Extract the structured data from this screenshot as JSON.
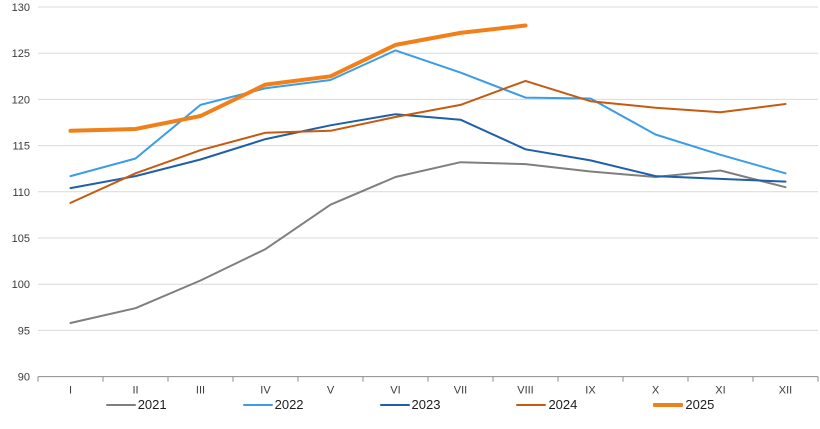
{
  "chart_data": {
    "type": "line",
    "title": "",
    "xlabel": "",
    "ylabel": "",
    "categories": [
      "I",
      "II",
      "III",
      "IV",
      "V",
      "VI",
      "VII",
      "VIII",
      "IX",
      "X",
      "XI",
      "XII"
    ],
    "y_axis": {
      "min": 90,
      "max": 130,
      "step": 5,
      "tick_labels": [
        "90",
        "95",
        "100",
        "105",
        "110",
        "115",
        "120",
        "125",
        "130"
      ]
    },
    "grid": true,
    "legend_position": "bottom",
    "series": [
      {
        "name": "2021",
        "color": "#7F7F7F",
        "stroke_width": 2,
        "values": [
          95.8,
          97.4,
          100.4,
          103.8,
          108.6,
          111.6,
          113.2,
          113.0,
          112.2,
          111.6,
          112.3,
          110.5
        ]
      },
      {
        "name": "2022",
        "color": "#3B9CE8",
        "stroke_width": 2,
        "values": [
          111.7,
          113.6,
          119.4,
          121.2,
          122.1,
          125.3,
          122.9,
          120.2,
          120.1,
          116.2,
          114.0,
          112.0
        ]
      },
      {
        "name": "2023",
        "color": "#1F5FA8",
        "stroke_width": 2,
        "values": [
          110.4,
          111.7,
          113.5,
          115.7,
          117.2,
          118.4,
          117.8,
          114.6,
          113.4,
          111.7,
          111.4,
          111.1
        ]
      },
      {
        "name": "2024",
        "color": "#C55A11",
        "stroke_width": 2,
        "values": [
          108.8,
          112.0,
          114.5,
          116.4,
          116.6,
          118.1,
          119.4,
          122.0,
          119.8,
          119.1,
          118.6,
          119.5
        ]
      },
      {
        "name": "2025",
        "color": "#F08019",
        "stroke_width": 4,
        "values": [
          116.6,
          116.8,
          118.2,
          121.6,
          122.5,
          125.9,
          127.2,
          128.0
        ]
      }
    ],
    "style": {
      "gridline_color": "#D9D9D9",
      "axis_color": "#8C8C8C",
      "tick_label_color": "#3b3b3b",
      "tick_label_size": 11
    }
  }
}
